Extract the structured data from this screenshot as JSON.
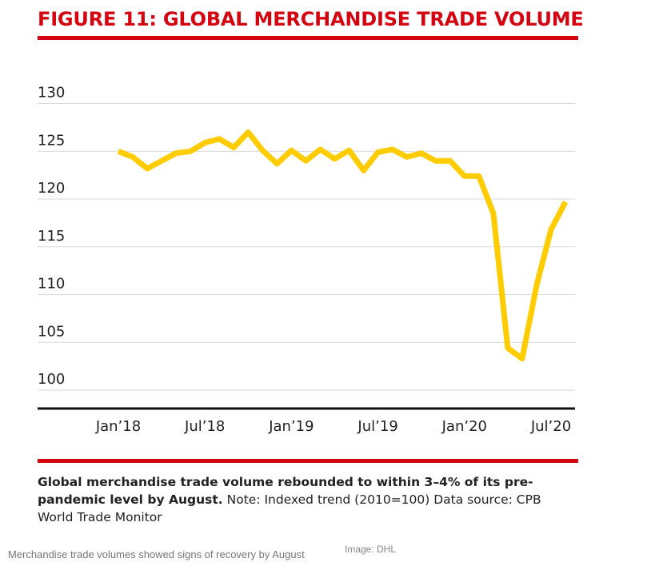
{
  "figure": {
    "title": "FIGURE 11: GLOBAL MERCHANDISE TRADE VOLUME",
    "caption_bold": "Global merchandise trade volume rebounded to within 3–4% of its pre-pandemic level by August.",
    "caption_rest": " Note: Indexed trend (2010=100) Data source: CPB World Trade Monitor"
  },
  "footer": {
    "caption": "Merchandise trade volumes showed signs of recovery by August",
    "credit": "Image: DHL"
  },
  "colors": {
    "accent_red": "#d40511",
    "line_yellow": "#ffcc00",
    "grid": "#d9d9d9",
    "axis": "#111111"
  },
  "chart_data": {
    "type": "line",
    "title": "FIGURE 11: GLOBAL MERCHANDISE TRADE VOLUME",
    "xlabel": "",
    "ylabel": "",
    "ylim": [
      97,
      131
    ],
    "yticks": [
      100,
      105,
      110,
      115,
      120,
      125,
      130
    ],
    "xticks": [
      "Jan’18",
      "Jul’18",
      "Jan’19",
      "Jul’19",
      "Jan’20",
      "Jul’20"
    ],
    "grid": true,
    "legend": "none",
    "series": [
      {
        "x": [
          "2018-01",
          "2018-02",
          "2018-03",
          "2018-04",
          "2018-05",
          "2018-06",
          "2018-07",
          "2018-08",
          "2018-09",
          "2018-10",
          "2018-11",
          "2018-12",
          "2019-01",
          "2019-02",
          "2019-03",
          "2019-04",
          "2019-05",
          "2019-06",
          "2019-07",
          "2019-08",
          "2019-09",
          "2019-10",
          "2019-11",
          "2019-12",
          "2020-01",
          "2020-02",
          "2020-03",
          "2020-04",
          "2020-05",
          "2020-06",
          "2020-07",
          "2020-08"
        ],
        "values": [
          125.0,
          124.4,
          123.2,
          124.0,
          124.8,
          125.0,
          125.9,
          126.3,
          125.4,
          127.0,
          125.1,
          123.7,
          125.1,
          124.0,
          125.2,
          124.2,
          125.1,
          123.0,
          124.9,
          125.2,
          124.4,
          124.8,
          124.0,
          124.0,
          122.4,
          122.4,
          118.5,
          104.4,
          103.3,
          111.0,
          116.8,
          119.7
        ]
      }
    ]
  }
}
